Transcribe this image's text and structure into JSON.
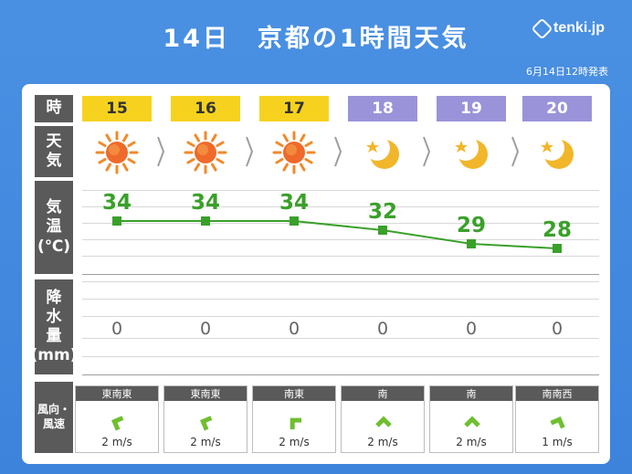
{
  "header": {
    "title": "14日　京都の1時間天気",
    "logo_text": "tenki.jp",
    "issued": "6月14日12時発表"
  },
  "labels": {
    "time": "時",
    "weather": "天\n気",
    "temp": "気\n温\n(℃)",
    "precip": "降\n水\n量\n(mm)",
    "wind": "風向・風速"
  },
  "colors": {
    "background": "#4a90e2",
    "day_hour": "#f6d21f",
    "night_hour": "#9a93d9",
    "temp_line": "#3aa02a",
    "wind_arrow": "#6fbf2f"
  },
  "forecast": [
    {
      "hour": "15",
      "period": "day",
      "icon": "sun-icon",
      "temp": "34",
      "temp_value": 34,
      "precip": "0",
      "wind_dir": "東南東",
      "wind_speed": "2 m/s",
      "wind_arrow_deg": 292
    },
    {
      "hour": "16",
      "period": "day",
      "icon": "sun-icon",
      "temp": "34",
      "temp_value": 34,
      "precip": "0",
      "wind_dir": "東南東",
      "wind_speed": "2 m/s",
      "wind_arrow_deg": 292
    },
    {
      "hour": "17",
      "period": "day",
      "icon": "sun-icon",
      "temp": "34",
      "temp_value": 34,
      "precip": "0",
      "wind_dir": "南東",
      "wind_speed": "2 m/s",
      "wind_arrow_deg": 315
    },
    {
      "hour": "18",
      "period": "night",
      "icon": "moon-star-icon",
      "temp": "32",
      "temp_value": 32,
      "precip": "0",
      "wind_dir": "南",
      "wind_speed": "2 m/s",
      "wind_arrow_deg": 0
    },
    {
      "hour": "19",
      "period": "night",
      "icon": "moon-star-icon",
      "temp": "29",
      "temp_value": 29,
      "precip": "0",
      "wind_dir": "南",
      "wind_speed": "2 m/s",
      "wind_arrow_deg": 0
    },
    {
      "hour": "20",
      "period": "night",
      "icon": "moon-star-icon",
      "temp": "28",
      "temp_value": 28,
      "precip": "0",
      "wind_dir": "南南西",
      "wind_speed": "1 m/s",
      "wind_arrow_deg": 22
    }
  ]
}
